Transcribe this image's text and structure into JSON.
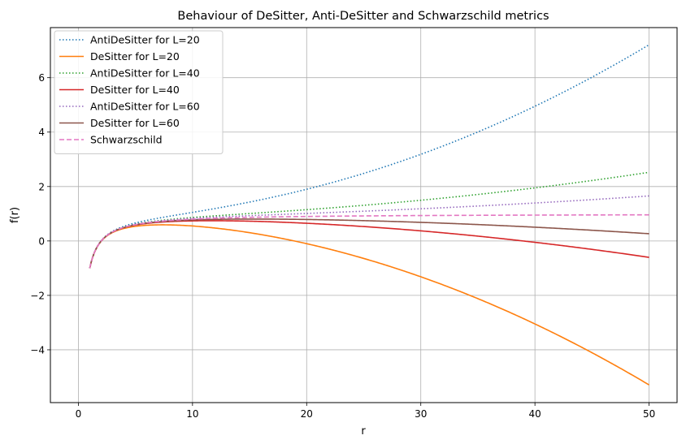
{
  "chart_data": {
    "type": "line",
    "title": "Behaviour of DeSitter, Anti-DeSitter and Schwarzschild metrics",
    "xlabel": "r",
    "ylabel": "f(r)",
    "xlim": [
      -2.45,
      52.45
    ],
    "ylim": [
      -5.94,
      7.84
    ],
    "xticks": [
      0,
      10,
      20,
      30,
      40,
      50
    ],
    "yticks": [
      -4,
      -2,
      0,
      2,
      4,
      6
    ],
    "grid": true,
    "legend_position": "top-left",
    "series": [
      {
        "name": "AntiDeSitter for L=20",
        "L": 20,
        "sign": 1,
        "color": "#1f77b4",
        "dash": "dotted"
      },
      {
        "name": "DeSitter for L=20",
        "L": 20,
        "sign": -1,
        "color": "#ff7f0e",
        "dash": "solid"
      },
      {
        "name": "AntiDeSitter for L=40",
        "L": 40,
        "sign": 1,
        "color": "#2ca02c",
        "dash": "dotted"
      },
      {
        "name": "DeSitter for L=40",
        "L": 40,
        "sign": -1,
        "color": "#d62728",
        "dash": "solid"
      },
      {
        "name": "AntiDeSitter for L=60",
        "L": 60,
        "sign": 1,
        "color": "#9467bd",
        "dash": "dotted"
      },
      {
        "name": "DeSitter for L=60",
        "L": 60,
        "sign": -1,
        "color": "#8c564b",
        "dash": "solid"
      },
      {
        "name": "Schwarzschild",
        "L": null,
        "sign": 0,
        "color": "#e377c2",
        "dash": "dashed"
      }
    ],
    "r_range": [
      1,
      50
    ],
    "r_s": 2
  }
}
